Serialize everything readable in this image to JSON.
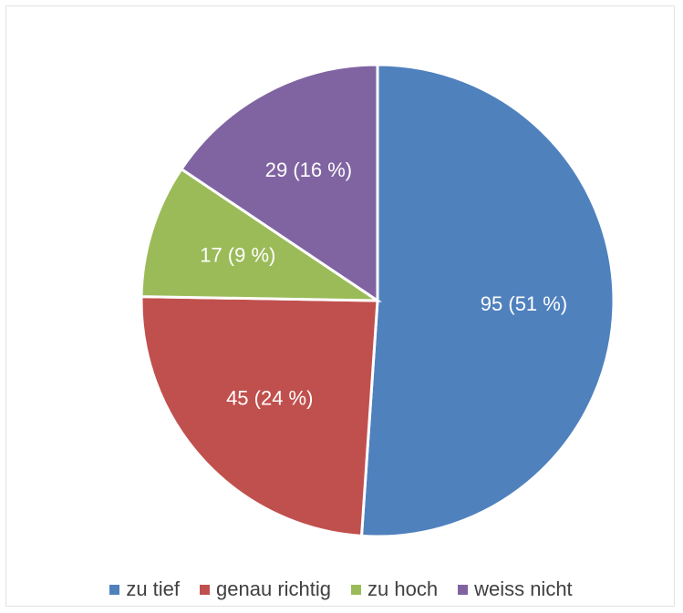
{
  "chart_data": {
    "type": "pie",
    "title": "",
    "slices": [
      {
        "name": "zu tief",
        "value": 95,
        "label": "95 (51 %)",
        "color": "#4F81BD"
      },
      {
        "name": "genau richtig",
        "value": 45,
        "label": "45 (24 %)",
        "color": "#C0504D"
      },
      {
        "name": "zu hoch",
        "value": 17,
        "label": "17 (9 %)",
        "color": "#9BBB59"
      },
      {
        "name": "weiss nicht",
        "value": 29,
        "label": "29 (16 %)",
        "color": "#8064A2"
      }
    ],
    "legend_position": "bottom",
    "start_angle": "12 o'clock, clockwise"
  }
}
